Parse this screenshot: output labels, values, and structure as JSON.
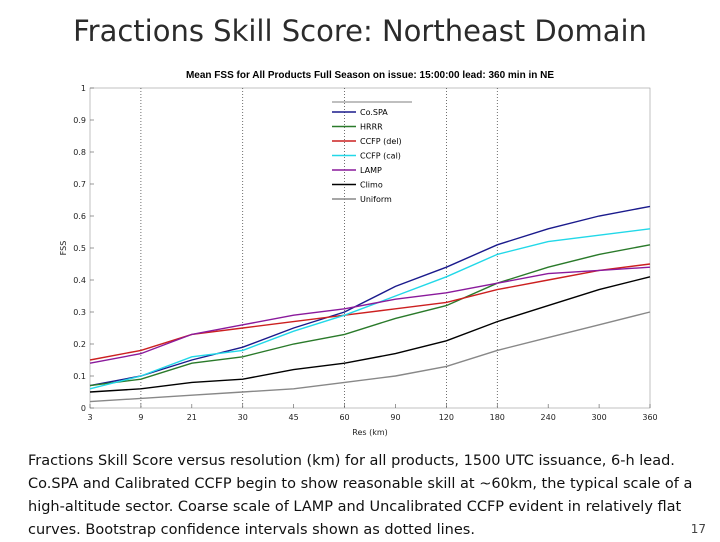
{
  "slide": {
    "title": "Fractions Skill Score: Northeast Domain",
    "caption": "Fractions Skill Score versus resolution (km) for all products, 1500 UTC issuance, 6-h lead.  Co.SPA and Calibrated CCFP begin to show reasonable skill at ~60km, the typical scale of a high-altitude sector.  Coarse scale of LAMP and Uncalibrated CCFP evident in relatively flat curves.  Bootstrap confidence intervals shown as dotted lines.",
    "page_number": "17"
  },
  "chart_data": {
    "type": "line",
    "title": "Mean FSS for All Products Full Season on issue: 15:00:00 lead: 360 min in NE",
    "xlabel": "Res (km)",
    "ylabel": "FSS",
    "x": [
      "3",
      "9",
      "21",
      "30",
      "45",
      "60",
      "90",
      "120",
      "180",
      "240",
      "300",
      "360"
    ],
    "ylim": [
      0,
      1
    ],
    "yticks": [
      "0",
      "0.1",
      "0.2",
      "0.3",
      "0.4",
      "0.5",
      "0.6",
      "0.7",
      "0.8",
      "0.9",
      "1"
    ],
    "dotted_vertical_gridlines_at": [
      "9",
      "30",
      "60",
      "120",
      "180"
    ],
    "legend_position": "top-center",
    "series": [
      {
        "name": "Co.SPA",
        "color": "#1a1a8c",
        "values": [
          0.07,
          0.1,
          0.15,
          0.19,
          0.25,
          0.3,
          0.38,
          0.44,
          0.51,
          0.56,
          0.6,
          0.63
        ]
      },
      {
        "name": "HRRR",
        "color": "#2a7a2a",
        "values": [
          0.07,
          0.09,
          0.14,
          0.16,
          0.2,
          0.23,
          0.28,
          0.32,
          0.39,
          0.44,
          0.48,
          0.51
        ]
      },
      {
        "name": "CCFP (del)",
        "color": "#cc2020",
        "values": [
          0.15,
          0.18,
          0.23,
          0.25,
          0.27,
          0.29,
          0.31,
          0.33,
          0.37,
          0.4,
          0.43,
          0.45
        ]
      },
      {
        "name": "CCFP (cal)",
        "color": "#22d8e8",
        "values": [
          0.06,
          0.1,
          0.16,
          0.18,
          0.24,
          0.29,
          0.35,
          0.41,
          0.48,
          0.52,
          0.54,
          0.56
        ]
      },
      {
        "name": "LAMP",
        "color": "#8a1a9c",
        "values": [
          0.14,
          0.17,
          0.23,
          0.26,
          0.29,
          0.31,
          0.34,
          0.36,
          0.39,
          0.42,
          0.43,
          0.44
        ]
      },
      {
        "name": "Climo",
        "color": "#000000",
        "values": [
          0.05,
          0.06,
          0.08,
          0.09,
          0.12,
          0.14,
          0.17,
          0.21,
          0.27,
          0.32,
          0.37,
          0.41
        ]
      },
      {
        "name": "Uniform",
        "color": "#888888",
        "values": [
          0.02,
          0.03,
          0.04,
          0.05,
          0.06,
          0.08,
          0.1,
          0.13,
          0.18,
          0.22,
          0.26,
          0.3
        ]
      }
    ]
  }
}
